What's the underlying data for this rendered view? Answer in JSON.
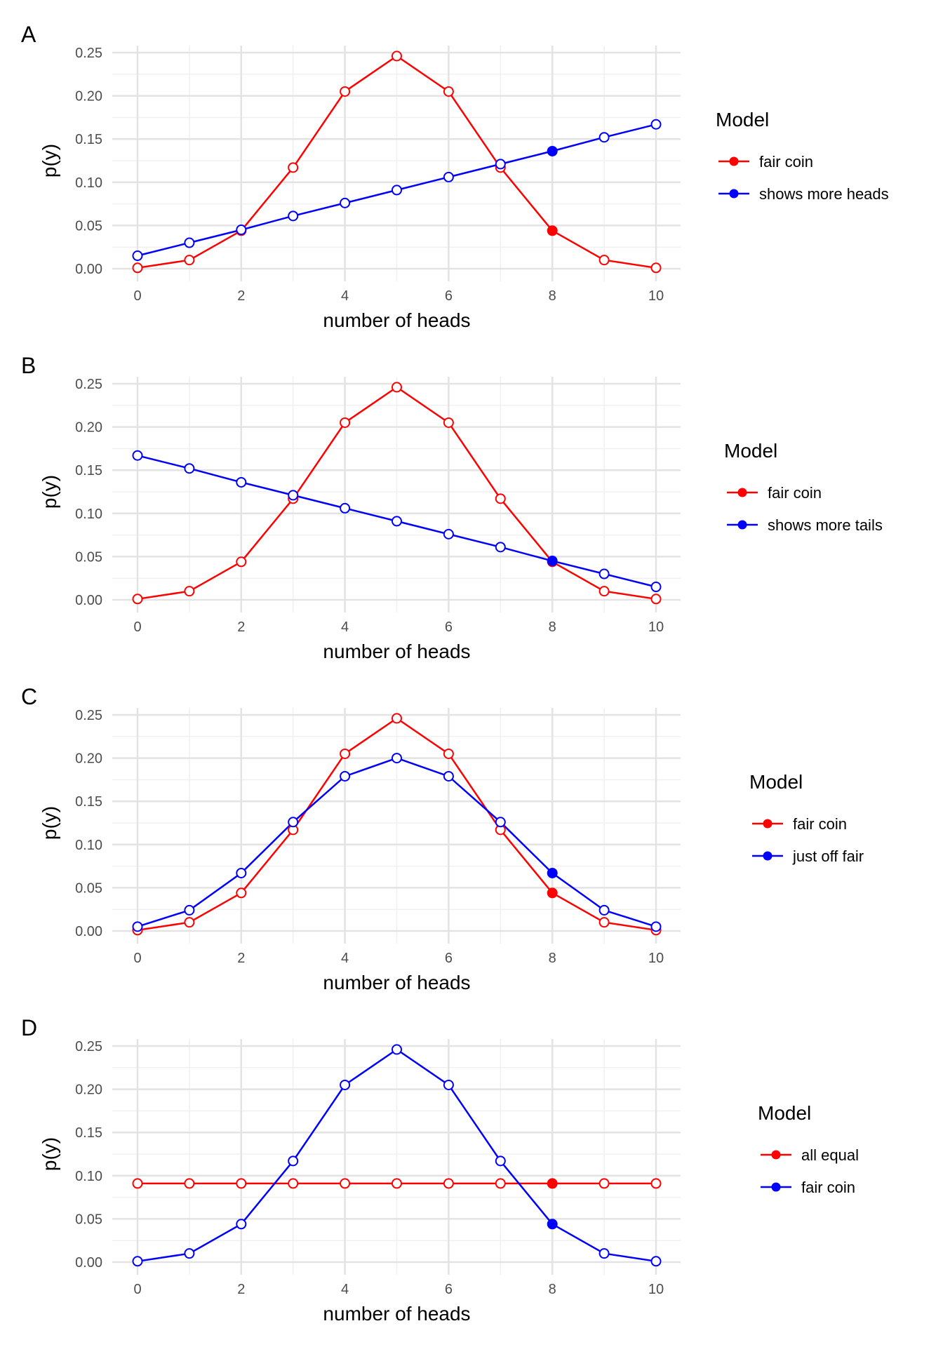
{
  "chart_data": [
    {
      "type": "line",
      "tag": "A",
      "xlabel": "number of heads",
      "ylabel": "p(y)",
      "xlim": [
        0,
        10
      ],
      "ylim": [
        0,
        0.25
      ],
      "x_ticks": [
        0,
        2,
        4,
        6,
        8,
        10
      ],
      "x_tick_labels": [
        "0",
        "2",
        "4",
        "6",
        "8",
        "10"
      ],
      "y_ticks": [
        0,
        0.05,
        0.1,
        0.15,
        0.2,
        0.25
      ],
      "y_tick_labels": [
        "0.00",
        "0.05",
        "0.10",
        "0.15",
        "0.20",
        "0.25"
      ],
      "grid": true,
      "legend_position": "right",
      "legend_title": "Model",
      "highlight_x": 8,
      "x": [
        0,
        1,
        2,
        3,
        4,
        5,
        6,
        7,
        8,
        9,
        10
      ],
      "series": [
        {
          "name": "fair coin",
          "color": "#ff0000",
          "values": [
            0.001,
            0.01,
            0.044,
            0.117,
            0.205,
            0.246,
            0.205,
            0.117,
            0.044,
            0.01,
            0.001
          ]
        },
        {
          "name": "shows more heads",
          "color": "#0000ff",
          "values": [
            0.015,
            0.03,
            0.045,
            0.061,
            0.076,
            0.091,
            0.106,
            0.121,
            0.136,
            0.152,
            0.167
          ]
        }
      ]
    },
    {
      "type": "line",
      "tag": "B",
      "xlabel": "number of heads",
      "ylabel": "p(y)",
      "xlim": [
        0,
        10
      ],
      "ylim": [
        0,
        0.25
      ],
      "x_ticks": [
        0,
        2,
        4,
        6,
        8,
        10
      ],
      "x_tick_labels": [
        "0",
        "2",
        "4",
        "6",
        "8",
        "10"
      ],
      "y_ticks": [
        0,
        0.05,
        0.1,
        0.15,
        0.2,
        0.25
      ],
      "y_tick_labels": [
        "0.00",
        "0.05",
        "0.10",
        "0.15",
        "0.20",
        "0.25"
      ],
      "grid": true,
      "legend_position": "right",
      "legend_title": "Model",
      "highlight_x": 8,
      "x": [
        0,
        1,
        2,
        3,
        4,
        5,
        6,
        7,
        8,
        9,
        10
      ],
      "series": [
        {
          "name": "fair coin",
          "color": "#ff0000",
          "values": [
            0.001,
            0.01,
            0.044,
            0.117,
            0.205,
            0.246,
            0.205,
            0.117,
            0.044,
            0.01,
            0.001
          ]
        },
        {
          "name": "shows more tails",
          "color": "#0000ff",
          "values": [
            0.167,
            0.152,
            0.136,
            0.121,
            0.106,
            0.091,
            0.076,
            0.061,
            0.045,
            0.03,
            0.015
          ]
        }
      ]
    },
    {
      "type": "line",
      "tag": "C",
      "xlabel": "number of heads",
      "ylabel": "p(y)",
      "xlim": [
        0,
        10
      ],
      "ylim": [
        0,
        0.25
      ],
      "x_ticks": [
        0,
        2,
        4,
        6,
        8,
        10
      ],
      "x_tick_labels": [
        "0",
        "2",
        "4",
        "6",
        "8",
        "10"
      ],
      "y_ticks": [
        0,
        0.05,
        0.1,
        0.15,
        0.2,
        0.25
      ],
      "y_tick_labels": [
        "0.00",
        "0.05",
        "0.10",
        "0.15",
        "0.20",
        "0.25"
      ],
      "grid": true,
      "legend_position": "right",
      "legend_title": "Model",
      "highlight_x": 8,
      "x": [
        0,
        1,
        2,
        3,
        4,
        5,
        6,
        7,
        8,
        9,
        10
      ],
      "series": [
        {
          "name": "fair coin",
          "color": "#ff0000",
          "values": [
            0.001,
            0.01,
            0.044,
            0.117,
            0.205,
            0.246,
            0.205,
            0.117,
            0.044,
            0.01,
            0.001
          ]
        },
        {
          "name": "just off fair",
          "color": "#0000ff",
          "values": [
            0.005,
            0.024,
            0.067,
            0.126,
            0.179,
            0.2,
            0.179,
            0.126,
            0.067,
            0.024,
            0.005
          ]
        }
      ]
    },
    {
      "type": "line",
      "tag": "D",
      "xlabel": "number of heads",
      "ylabel": "p(y)",
      "xlim": [
        0,
        10
      ],
      "ylim": [
        0,
        0.25
      ],
      "x_ticks": [
        0,
        2,
        4,
        6,
        8,
        10
      ],
      "x_tick_labels": [
        "0",
        "2",
        "4",
        "6",
        "8",
        "10"
      ],
      "y_ticks": [
        0,
        0.05,
        0.1,
        0.15,
        0.2,
        0.25
      ],
      "y_tick_labels": [
        "0.00",
        "0.05",
        "0.10",
        "0.15",
        "0.20",
        "0.25"
      ],
      "grid": true,
      "legend_position": "right",
      "legend_title": "Model",
      "highlight_x": 8,
      "x": [
        0,
        1,
        2,
        3,
        4,
        5,
        6,
        7,
        8,
        9,
        10
      ],
      "series": [
        {
          "name": "all equal",
          "color": "#ff0000",
          "values": [
            0.091,
            0.091,
            0.091,
            0.091,
            0.091,
            0.091,
            0.091,
            0.091,
            0.091,
            0.091,
            0.091
          ]
        },
        {
          "name": "fair coin",
          "color": "#0000ff",
          "values": [
            0.001,
            0.01,
            0.044,
            0.117,
            0.205,
            0.246,
            0.205,
            0.117,
            0.044,
            0.01,
            0.001
          ]
        }
      ]
    }
  ]
}
